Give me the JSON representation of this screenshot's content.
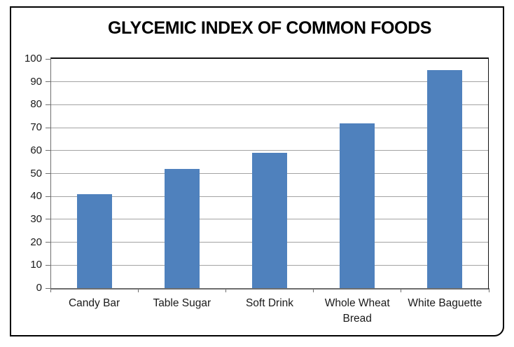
{
  "chart_data": {
    "type": "bar",
    "title": "GLYCEMIC INDEX OF COMMON FOODS",
    "categories": [
      "Candy Bar",
      "Table Sugar",
      "Soft Drink",
      "Whole Wheat Bread",
      "White Baguette"
    ],
    "values": [
      41,
      52,
      59,
      72,
      95
    ],
    "xlabel": "",
    "ylabel": "",
    "ylim": [
      0,
      100
    ],
    "yticks": [
      0,
      10,
      20,
      30,
      40,
      50,
      60,
      70,
      80,
      90,
      100
    ],
    "grid": true,
    "legend": "none",
    "colors": {
      "bar": "#4F81BD",
      "gridline": "#A3A3A3",
      "axis_line": "#6E6E6E",
      "plot_border": "#121212",
      "frame_border": "#000000",
      "text": "#1A1A1A",
      "title_text": "#000000",
      "background": "#FFFFFF"
    }
  }
}
